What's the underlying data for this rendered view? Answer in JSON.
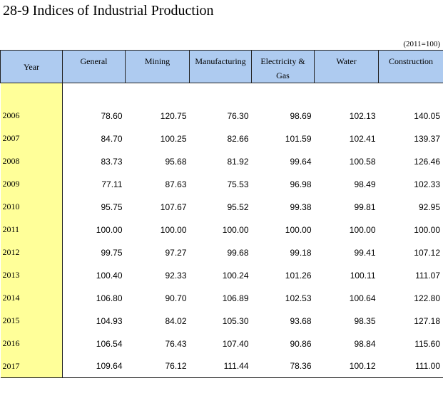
{
  "title": "28-9  Indices of Industrial Production",
  "unit_note": "(2011=100)",
  "columns": {
    "year": "Year",
    "general": "General",
    "mining": "Mining",
    "manufacturing": "Manufacturing",
    "electricity_line1": "Electricity &",
    "electricity_line2": "Gas",
    "water": "Water",
    "construction": "Construction"
  },
  "rows": [
    {
      "year": "2006",
      "general": "78.60",
      "mining": "120.75",
      "manufacturing": "76.30",
      "electricity": "98.69",
      "water": "102.13",
      "construction": "140.05"
    },
    {
      "year": "2007",
      "general": "84.70",
      "mining": "100.25",
      "manufacturing": "82.66",
      "electricity": "101.59",
      "water": "102.41",
      "construction": "139.37"
    },
    {
      "year": "2008",
      "general": "83.73",
      "mining": "95.68",
      "manufacturing": "81.92",
      "electricity": "99.64",
      "water": "100.58",
      "construction": "126.46"
    },
    {
      "year": "2009",
      "general": "77.11",
      "mining": "87.63",
      "manufacturing": "75.53",
      "electricity": "96.98",
      "water": "98.49",
      "construction": "102.33"
    },
    {
      "year": "2010",
      "general": "95.75",
      "mining": "107.67",
      "manufacturing": "95.52",
      "electricity": "99.38",
      "water": "99.81",
      "construction": "92.95"
    },
    {
      "year": "2011",
      "general": "100.00",
      "mining": "100.00",
      "manufacturing": "100.00",
      "electricity": "100.00",
      "water": "100.00",
      "construction": "100.00"
    },
    {
      "year": "2012",
      "general": "99.75",
      "mining": "97.27",
      "manufacturing": "99.68",
      "electricity": "99.18",
      "water": "99.41",
      "construction": "107.12"
    },
    {
      "year": "2013",
      "general": "100.40",
      "mining": "92.33",
      "manufacturing": "100.24",
      "electricity": "101.26",
      "water": "100.11",
      "construction": "111.07"
    },
    {
      "year": "2014",
      "general": "106.80",
      "mining": "90.70",
      "manufacturing": "106.89",
      "electricity": "102.53",
      "water": "100.64",
      "construction": "122.80"
    },
    {
      "year": "2015",
      "general": "104.93",
      "mining": "84.02",
      "manufacturing": "105.30",
      "electricity": "93.68",
      "water": "98.35",
      "construction": "127.18"
    },
    {
      "year": "2016",
      "general": "106.54",
      "mining": "76.43",
      "manufacturing": "107.40",
      "electricity": "90.86",
      "water": "98.84",
      "construction": "115.60"
    },
    {
      "year": "2017",
      "general": "109.64",
      "mining": "76.12",
      "manufacturing": "111.44",
      "electricity": "78.36",
      "water": "100.12",
      "construction": "111.00"
    }
  ]
}
